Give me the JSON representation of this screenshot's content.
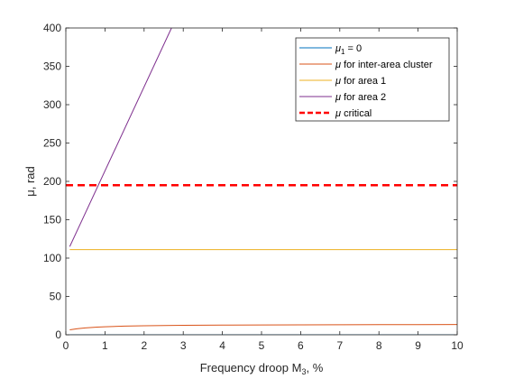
{
  "chart_data": {
    "type": "line",
    "xlabel": "Frequency droop M",
    "xlabel_sub": "3",
    "xlabel_suffix": ", %",
    "ylabel": "μ, rad",
    "xlim": [
      0,
      10
    ],
    "ylim": [
      0,
      400
    ],
    "xticks": [
      "0",
      "1",
      "2",
      "3",
      "4",
      "5",
      "6",
      "7",
      "8",
      "9",
      "10"
    ],
    "yticks": [
      "0",
      "50",
      "100",
      "150",
      "200",
      "250",
      "300",
      "350",
      "400"
    ],
    "grid": false,
    "legend_placement": "top-right",
    "series": [
      {
        "name": "μ1 = 0",
        "legend": {
          "sym": "μ",
          "sub": "1",
          "rest": " = 0"
        },
        "color": "#0072BD",
        "style": "solid",
        "x": [
          0.1,
          10
        ],
        "y": [
          0,
          0
        ]
      },
      {
        "name": "μ for inter-area cluster",
        "legend": {
          "sym": "μ",
          "sub": "",
          "rest": " for inter-area cluster"
        },
        "color": "#D95319",
        "style": "solid",
        "x": [
          0.1,
          0.3,
          0.5,
          0.8,
          1.0,
          1.5,
          2.0,
          3.0,
          4.0,
          5.0,
          6.0,
          7.0,
          8.0,
          9.0,
          10.0
        ],
        "y": [
          6.5,
          8.0,
          9.0,
          10.0,
          10.5,
          11.3,
          11.8,
          12.3,
          12.6,
          12.8,
          13.0,
          13.1,
          13.2,
          13.3,
          13.4
        ]
      },
      {
        "name": "μ for area 1",
        "legend": {
          "sym": "μ",
          "sub": "",
          "rest": " for area 1"
        },
        "color": "#EDB120",
        "style": "solid",
        "x": [
          0.1,
          10
        ],
        "y": [
          111,
          111
        ]
      },
      {
        "name": "μ for area 2",
        "legend": {
          "sym": "μ",
          "sub": "",
          "rest": " for area 2"
        },
        "color": "#7E2F8E",
        "style": "solid",
        "x": [
          0.1,
          2.7
        ],
        "y": [
          115,
          400
        ]
      },
      {
        "name": "μ critical",
        "legend": {
          "sym": "μ",
          "sub": "",
          "rest": " critical"
        },
        "color": "#FF0000",
        "style": "dashed",
        "x": [
          0,
          10
        ],
        "y": [
          195,
          195
        ]
      }
    ]
  }
}
